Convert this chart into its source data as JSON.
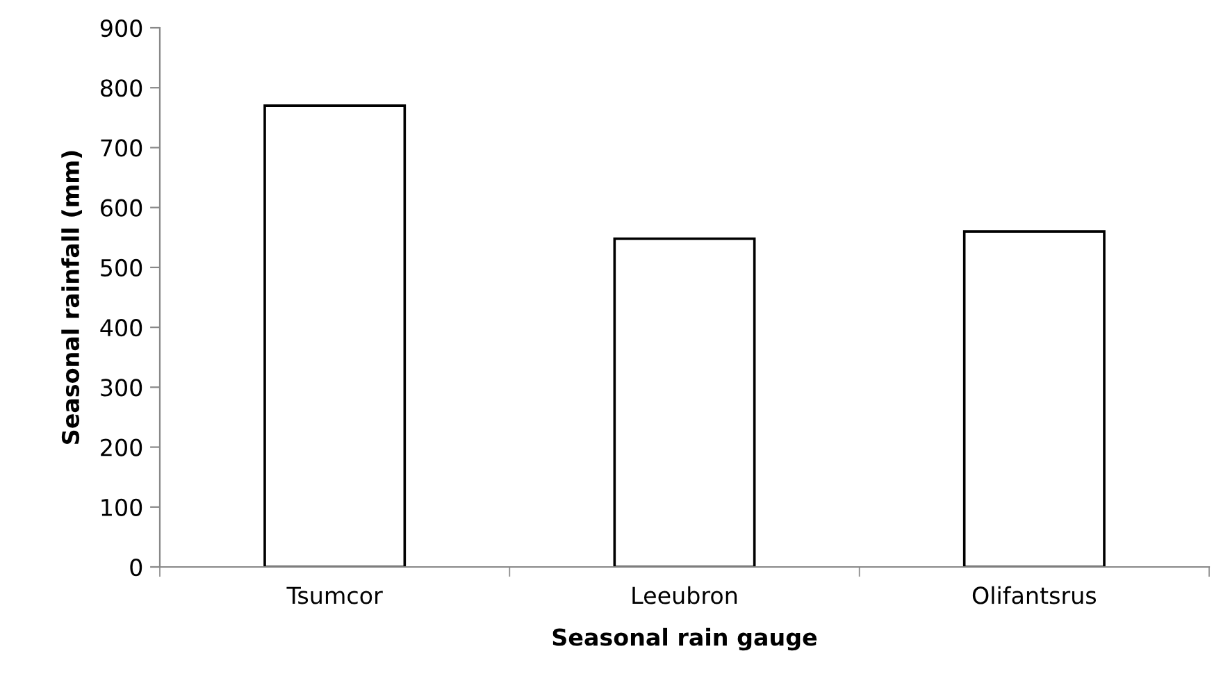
{
  "chart_data": {
    "type": "bar",
    "xlabel": "Seasonal rain gauge",
    "ylabel": "Seasonal rainfall (mm)",
    "categories": [
      "Tsumcor",
      "Leeubron",
      "Olifantsrus"
    ],
    "values": [
      770,
      548,
      560
    ],
    "color": "#ffffff",
    "ylim": [
      0,
      900
    ],
    "yticks": [
      0,
      100,
      200,
      300,
      400,
      500,
      600,
      700,
      800,
      900
    ],
    "grid": false
  }
}
